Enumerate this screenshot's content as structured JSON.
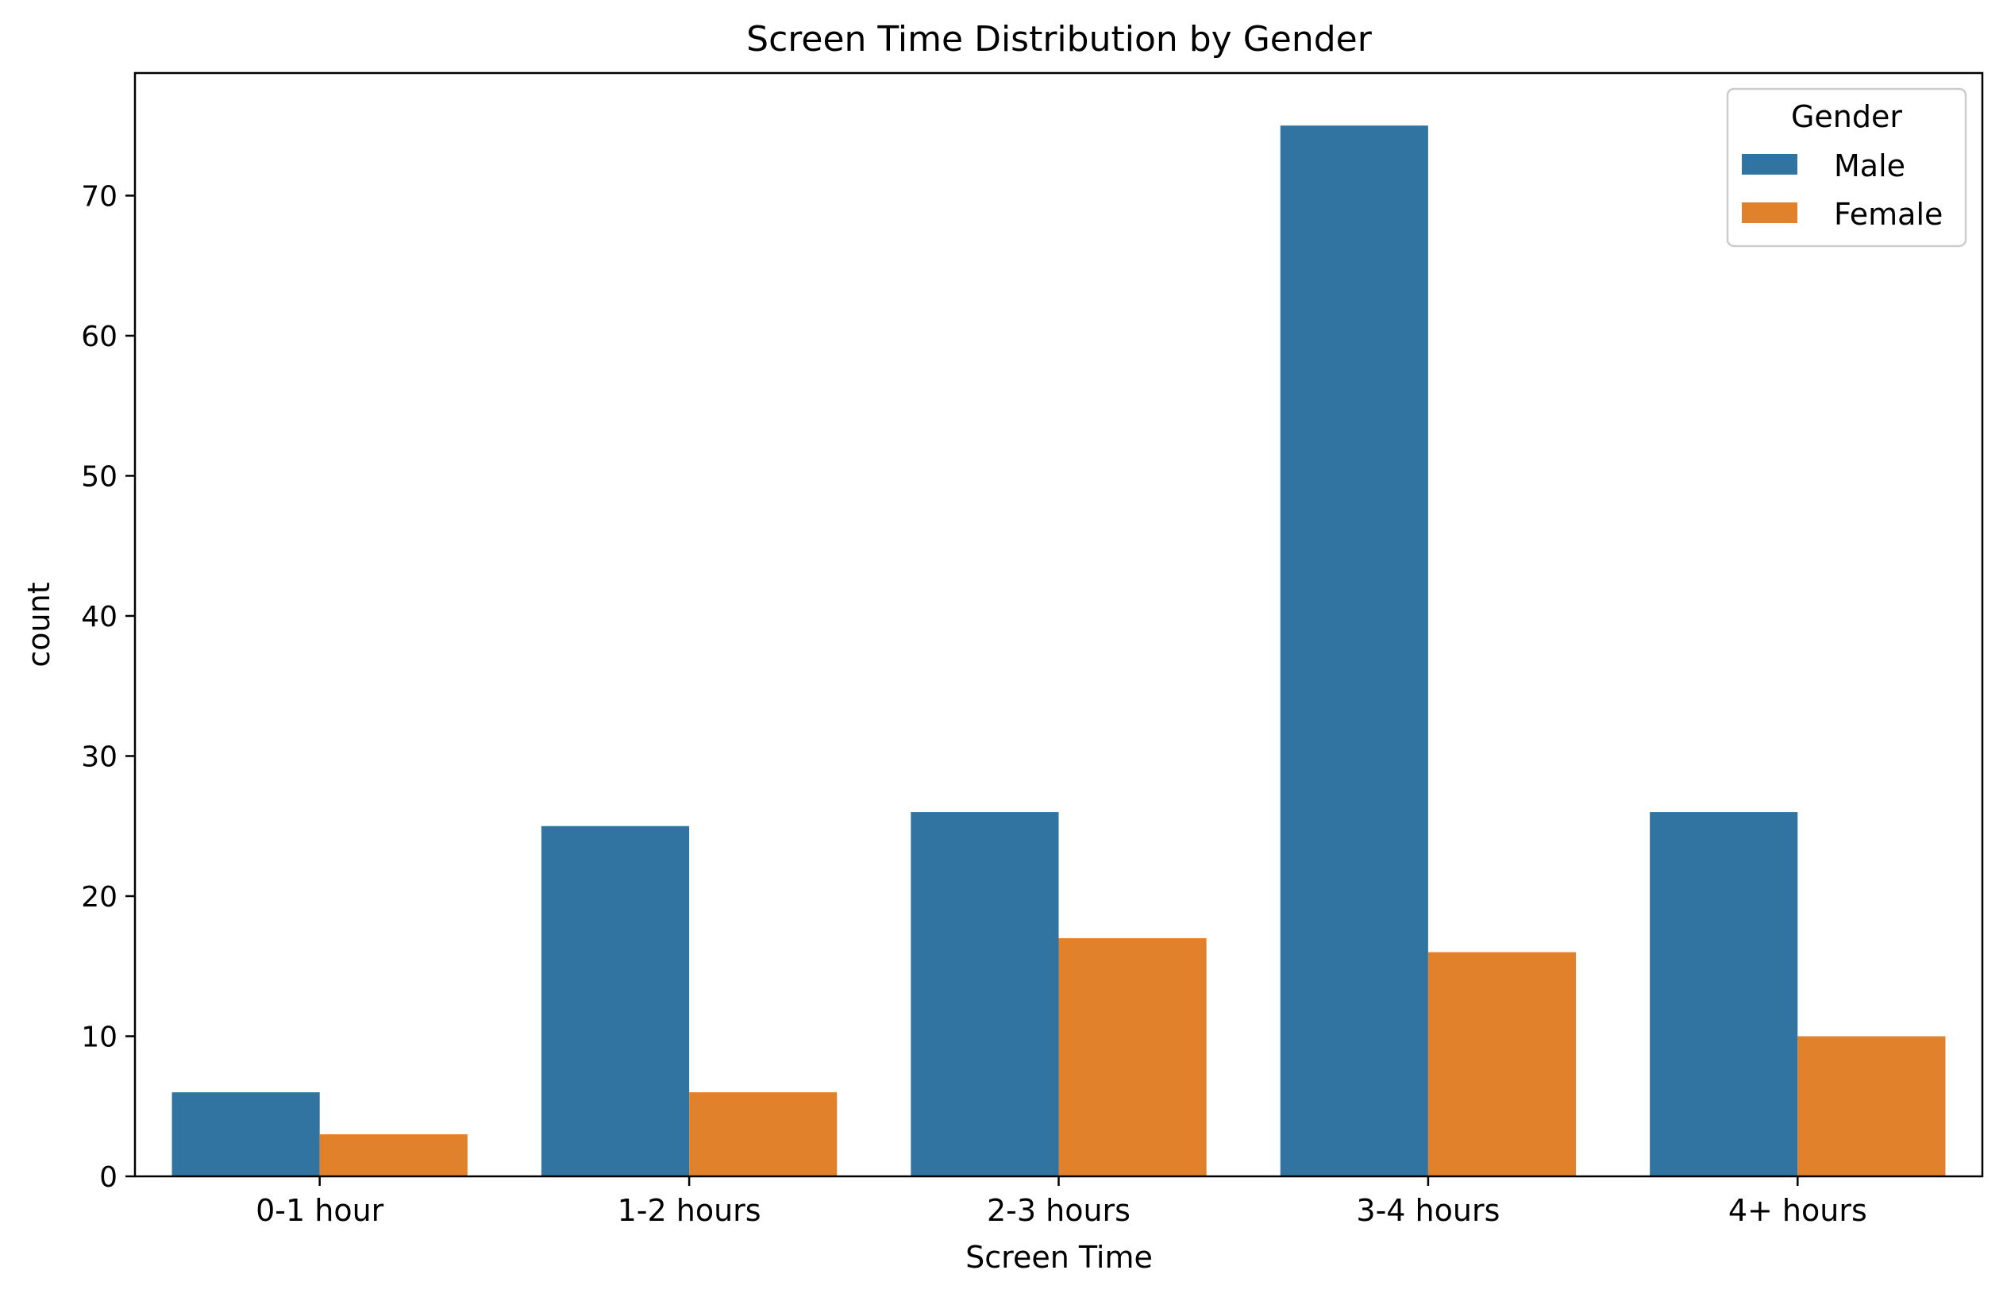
{
  "chart_data": {
    "type": "bar",
    "title": "Screen Time Distribution by Gender",
    "xlabel": "Screen Time",
    "ylabel": "count",
    "categories": [
      "0-1 hour",
      "1-2 hours",
      "2-3 hours",
      "3-4 hours",
      "4+ hours"
    ],
    "series": [
      {
        "name": "Male",
        "color": "#3274a1",
        "values": [
          6,
          25,
          26,
          75,
          26
        ]
      },
      {
        "name": "Female",
        "color": "#e1812c",
        "values": [
          3,
          6,
          17,
          16,
          10
        ]
      }
    ],
    "ylim": [
      0,
      78.75
    ],
    "yticks": [
      0,
      10,
      20,
      30,
      40,
      50,
      60,
      70
    ],
    "grid": false,
    "legend": {
      "title": "Gender",
      "placement": "top-right"
    }
  }
}
